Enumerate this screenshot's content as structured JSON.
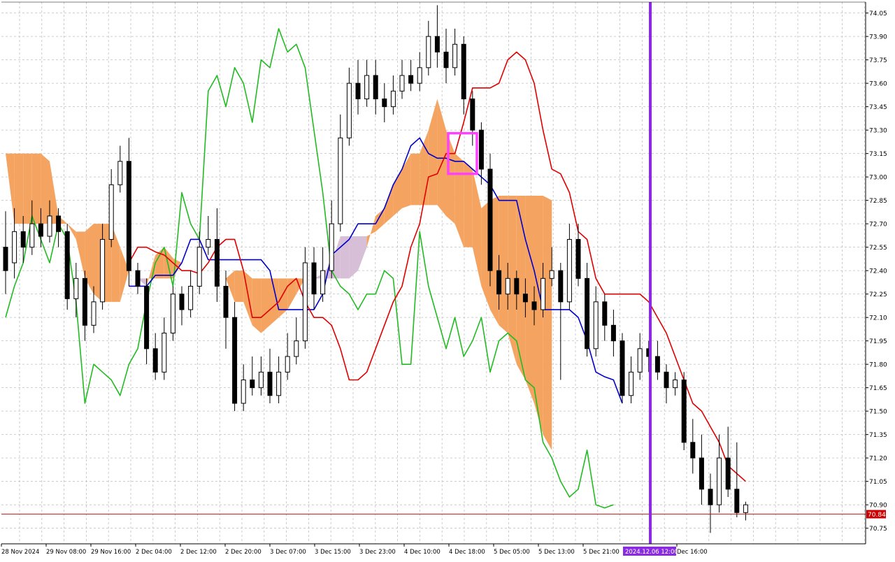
{
  "chart_data": {
    "type": "candlestick",
    "indicator": "Ichimoku Kinko Hyo",
    "grid": true,
    "ylim": [
      70.65,
      74.12
    ],
    "y_ticks": [
      "74.05",
      "73.90",
      "73.75",
      "73.60",
      "73.45",
      "73.30",
      "73.15",
      "73.00",
      "72.85",
      "72.70",
      "72.55",
      "72.40",
      "72.25",
      "72.10",
      "71.95",
      "71.80",
      "71.65",
      "71.50",
      "71.35",
      "71.20",
      "71.05",
      "70.90",
      "70.75"
    ],
    "x_ticks": [
      "28 Nov 2024",
      "29 Nov 08:00",
      "29 Nov 16:00",
      "2 Dec 04:00",
      "2 Dec 12:00",
      "2 Dec 20:00",
      "3 Dec 07:00",
      "3 Dec 15:00",
      "3 Dec 23:00",
      "4 Dec 10:00",
      "4 Dec 18:00",
      "5 Dec 05:00",
      "5 Dec 13:00",
      "5 Dec 21:00",
      "2024.12.06 12:00",
      "Dec 16:00"
    ],
    "current_price": "70.84",
    "crosshair_time": "2024.12.06 12:00",
    "colors": {
      "bull_candle": "#ffffff",
      "bear_candle": "#000000",
      "tenkan": "#e00000",
      "kijun": "#0000cc",
      "chikou": "#22bb22",
      "kumo_bull": "#f4a460",
      "kumo_bear": "#d8bfd8",
      "crosshair": "#8a2be2",
      "highlight_box": "#ff40ff",
      "price_line": "#cc0000",
      "grid": "#c0c0c0"
    },
    "candles": [
      [
        72.55,
        72.4,
        72.78,
        72.25
      ],
      [
        72.45,
        72.65,
        72.8,
        72.35
      ],
      [
        72.65,
        72.55,
        72.75,
        72.45
      ],
      [
        72.55,
        72.7,
        72.85,
        72.5
      ],
      [
        72.7,
        72.62,
        72.8,
        72.55
      ],
      [
        72.62,
        72.75,
        72.85,
        72.58
      ],
      [
        72.75,
        72.65,
        72.8,
        72.55
      ],
      [
        72.65,
        72.22,
        72.7,
        72.15
      ],
      [
        72.22,
        72.35,
        72.45,
        72.1
      ],
      [
        72.35,
        72.05,
        72.4,
        71.95
      ],
      [
        72.05,
        72.2,
        72.3,
        72.0
      ],
      [
        72.2,
        72.6,
        72.7,
        72.15
      ],
      [
        72.6,
        72.95,
        73.05,
        72.55
      ],
      [
        72.95,
        73.1,
        73.2,
        72.9
      ],
      [
        73.1,
        72.4,
        73.25,
        72.3
      ],
      [
        72.4,
        72.3,
        72.45,
        72.25
      ],
      [
        72.3,
        71.9,
        72.35,
        71.8
      ],
      [
        71.9,
        71.75,
        72.0,
        71.7
      ],
      [
        71.75,
        72.0,
        72.1,
        71.7
      ],
      [
        72.0,
        72.25,
        72.3,
        71.95
      ],
      [
        72.25,
        72.15,
        72.3,
        72.05
      ],
      [
        72.15,
        72.3,
        72.4,
        72.1
      ],
      [
        72.3,
        72.55,
        72.65,
        72.25
      ],
      [
        72.55,
        72.6,
        72.75,
        72.5
      ],
      [
        72.6,
        72.3,
        72.8,
        72.2
      ],
      [
        72.3,
        72.1,
        72.4,
        71.9
      ],
      [
        72.1,
        71.55,
        72.2,
        71.5
      ],
      [
        71.55,
        71.7,
        71.8,
        71.5
      ],
      [
        71.7,
        71.65,
        71.85,
        71.6
      ],
      [
        71.65,
        71.75,
        71.85,
        71.6
      ],
      [
        71.75,
        71.6,
        71.9,
        71.55
      ],
      [
        71.6,
        71.75,
        71.85,
        71.55
      ],
      [
        71.75,
        71.85,
        72.0,
        71.7
      ],
      [
        71.85,
        71.95,
        72.1,
        71.8
      ],
      [
        71.95,
        72.45,
        72.55,
        71.9
      ],
      [
        72.45,
        72.25,
        72.55,
        72.15
      ],
      [
        72.25,
        72.4,
        72.55,
        72.2
      ],
      [
        72.4,
        72.7,
        72.85,
        72.35
      ],
      [
        72.7,
        73.25,
        73.4,
        72.65
      ],
      [
        73.25,
        73.6,
        73.7,
        73.2
      ],
      [
        73.6,
        73.5,
        73.75,
        73.4
      ],
      [
        73.5,
        73.65,
        73.75,
        73.45
      ],
      [
        73.65,
        73.5,
        73.75,
        73.4
      ],
      [
        73.5,
        73.45,
        73.6,
        73.35
      ],
      [
        73.45,
        73.55,
        73.65,
        73.4
      ],
      [
        73.55,
        73.65,
        73.75,
        73.5
      ],
      [
        73.65,
        73.6,
        73.75,
        73.55
      ],
      [
        73.6,
        73.7,
        73.8,
        73.55
      ],
      [
        73.7,
        73.9,
        74.0,
        73.65
      ],
      [
        73.9,
        73.8,
        74.1,
        73.7
      ],
      [
        73.8,
        73.7,
        73.95,
        73.6
      ],
      [
        73.7,
        73.85,
        73.95,
        73.65
      ],
      [
        73.85,
        73.5,
        73.9,
        73.4
      ],
      [
        73.5,
        73.3,
        73.55,
        73.2
      ],
      [
        73.3,
        73.05,
        73.35,
        72.95
      ],
      [
        73.05,
        72.4,
        73.15,
        72.3
      ],
      [
        72.4,
        72.25,
        72.5,
        72.15
      ],
      [
        72.25,
        72.35,
        72.45,
        72.15
      ],
      [
        72.35,
        72.25,
        72.4,
        72.15
      ],
      [
        72.25,
        72.2,
        72.35,
        72.1
      ],
      [
        72.2,
        72.15,
        72.3,
        72.05
      ],
      [
        72.15,
        72.35,
        72.45,
        72.1
      ],
      [
        72.35,
        72.4,
        72.55,
        72.3
      ],
      [
        72.4,
        72.2,
        72.45,
        71.7
      ],
      [
        72.2,
        72.6,
        72.7,
        72.15
      ],
      [
        72.6,
        72.35,
        72.7,
        72.3
      ],
      [
        72.35,
        71.9,
        72.45,
        71.85
      ],
      [
        71.9,
        72.2,
        72.3,
        71.85
      ],
      [
        72.2,
        72.05,
        72.25,
        71.95
      ],
      [
        72.05,
        71.95,
        72.15,
        71.85
      ],
      [
        71.95,
        71.6,
        72.0,
        71.55
      ],
      [
        71.6,
        71.75,
        71.85,
        71.55
      ],
      [
        71.75,
        71.9,
        72.0,
        71.7
      ],
      [
        71.9,
        71.85,
        71.95,
        71.75
      ],
      [
        71.85,
        71.75,
        71.95,
        71.7
      ],
      [
        71.75,
        71.65,
        71.8,
        71.55
      ],
      [
        71.65,
        71.7,
        71.75,
        71.6
      ],
      [
        71.7,
        71.3,
        71.75,
        71.25
      ],
      [
        71.3,
        71.2,
        71.45,
        71.1
      ],
      [
        71.2,
        71.0,
        71.35,
        70.9
      ],
      [
        71.0,
        70.9,
        71.1,
        70.72
      ],
      [
        70.9,
        71.2,
        71.35,
        70.85
      ],
      [
        71.2,
        71.0,
        71.4,
        70.95
      ],
      [
        71.0,
        70.85,
        71.3,
        70.82
      ],
      [
        70.85,
        70.9,
        70.92,
        70.8
      ]
    ],
    "tenkan": [
      72.45,
      72.55,
      72.55,
      72.52,
      72.5,
      72.45,
      72.4,
      72.4,
      72.38,
      72.45,
      72.55,
      72.6,
      72.6,
      72.4,
      72.1,
      72.1,
      72.15,
      72.2,
      72.3,
      72.35,
      72.2,
      72.1,
      72.1,
      72.05,
      71.9,
      71.7,
      71.7,
      71.75,
      71.9,
      72.05,
      72.2,
      72.3,
      72.55,
      72.7,
      73.0,
      73.02,
      73.15,
      73.15,
      73.35,
      73.57,
      73.57,
      73.57,
      73.6,
      73.75,
      73.8,
      73.75,
      73.6,
      73.3,
      73.05,
      73.02,
      72.9,
      72.65,
      72.6,
      72.35,
      72.25,
      72.25,
      72.25,
      72.25,
      72.25,
      72.2,
      72.1,
      72.0,
      71.85,
      71.7,
      71.55,
      71.5,
      71.4,
      71.3,
      71.15,
      71.1,
      71.05
    ],
    "kijun": [
      72.3,
      72.3,
      72.3,
      72.37,
      72.37,
      72.37,
      72.45,
      72.6,
      72.6,
      72.47,
      72.47,
      72.47,
      72.47,
      72.47,
      72.47,
      72.47,
      72.4,
      72.15,
      72.15,
      72.15,
      72.15,
      72.15,
      72.25,
      72.5,
      72.55,
      72.6,
      72.7,
      72.7,
      72.7,
      72.8,
      72.95,
      73.05,
      73.2,
      73.25,
      73.15,
      73.12,
      73.12,
      73.1,
      73.1,
      73.05,
      73.0,
      72.95,
      72.85,
      72.85,
      72.85,
      72.6,
      72.4,
      72.15,
      72.15,
      72.15,
      72.15,
      72.1,
      71.95,
      71.75,
      71.72,
      71.7,
      71.55
    ],
    "chikou": [
      72.1,
      72.3,
      72.45,
      72.75,
      72.6,
      72.45,
      72.7,
      72.6,
      72.2,
      71.55,
      71.8,
      71.75,
      71.7,
      71.6,
      71.8,
      71.9,
      72.2,
      72.45,
      72.55,
      72.3,
      72.9,
      72.7,
      72.6,
      73.55,
      73.65,
      73.45,
      73.7,
      73.6,
      73.35,
      73.75,
      73.7,
      73.95,
      73.8,
      73.85,
      73.7,
      73.3,
      72.9,
      72.4,
      72.3,
      72.25,
      72.15,
      72.25,
      72.25,
      72.4,
      72.35,
      71.8,
      71.8,
      72.65,
      72.3,
      72.1,
      71.9,
      72.1,
      71.85,
      71.95,
      72.1,
      71.75,
      71.95,
      72.0,
      71.95,
      71.7,
      71.65,
      71.3,
      71.2,
      71.05,
      70.95,
      71.0,
      71.25,
      70.9,
      70.88,
      70.9
    ],
    "span_a": [
      73.15,
      73.15,
      73.15,
      73.15,
      73.15,
      73.1,
      72.75,
      72.7,
      72.65,
      72.65,
      72.7,
      72.7,
      72.7,
      72.55,
      72.4,
      72.35,
      72.3,
      72.5,
      72.55,
      72.48,
      72.45,
      72.45,
      72.45,
      72.45,
      72.42,
      72.35,
      72.4,
      72.4,
      72.35,
      72.35,
      72.35,
      72.35,
      72.35,
      72.35,
      72.35,
      72.35,
      72.35,
      72.35,
      72.35,
      72.35,
      72.4,
      72.55,
      72.75,
      72.8,
      72.95,
      73.05,
      73.15,
      73.15,
      73.3,
      73.5,
      73.3,
      73.15,
      73.1,
      73.05,
      72.8,
      72.85,
      72.88,
      72.88,
      72.88,
      72.88,
      72.88,
      72.88,
      72.85,
      72.85,
      72.85,
      72.85,
      72.85,
      72.4,
      72.4,
      72.4,
      72.3
    ],
    "span_b": [
      73.15,
      72.7,
      72.7,
      72.7,
      72.7,
      72.7,
      72.7,
      72.7,
      72.6,
      72.35,
      72.25,
      72.2,
      72.2,
      72.2,
      72.4,
      72.35,
      72.35,
      72.35,
      72.35,
      72.35,
      72.45,
      72.45,
      72.45,
      72.45,
      72.42,
      72.35,
      72.2,
      72.2,
      72.05,
      72.0,
      72.05,
      72.1,
      72.15,
      72.25,
      72.35,
      72.35,
      72.38,
      72.45,
      72.62,
      72.62,
      72.62,
      72.62,
      72.65,
      72.7,
      72.75,
      72.8,
      72.82,
      72.82,
      72.82,
      72.82,
      72.75,
      72.7,
      72.55,
      72.55,
      72.3,
      72.15,
      72.05,
      72.0,
      71.8,
      71.7,
      71.55,
      71.35,
      71.25
    ]
  }
}
